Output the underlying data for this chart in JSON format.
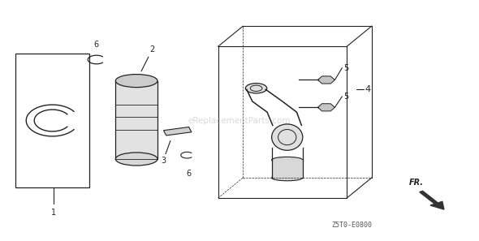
{
  "bg_color": "#ffffff",
  "line_color": "#222222",
  "label_color": "#222222",
  "watermark_color": "#bbbbbb",
  "bottom_code": "Z5T0-E0800",
  "fr_label": "FR.",
  "watermark_text": "eReplacementParts.com"
}
